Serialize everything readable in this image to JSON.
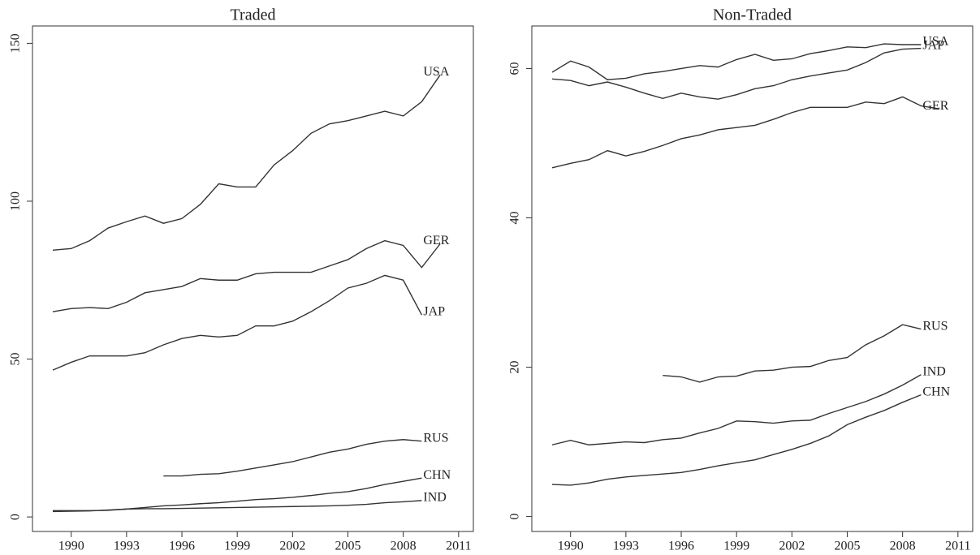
{
  "chart_data": [
    {
      "type": "line",
      "title": "Traded",
      "color": "#333333",
      "x": [
        1989,
        1990,
        1991,
        1992,
        1993,
        1994,
        1995,
        1996,
        1997,
        1998,
        1999,
        2000,
        2001,
        2002,
        2003,
        2004,
        2005,
        2006,
        2007,
        2008,
        2009,
        2010
      ],
      "xlim": [
        1987.9,
        2011.8
      ],
      "xticks": [
        1990,
        1993,
        1996,
        1999,
        2002,
        2005,
        2008,
        2011
      ],
      "ylim": [
        -4.6,
        155.5
      ],
      "yticks": [
        0,
        50,
        100,
        150
      ],
      "series": [
        {
          "name": "USA",
          "values": [
            84.5,
            85,
            87.5,
            91.5,
            93.5,
            95.3,
            93,
            94.5,
            99,
            105.5,
            104.5,
            104.5,
            111.5,
            116,
            121.5,
            124.5,
            125.5,
            127,
            128.5,
            127,
            131.5,
            140
          ]
        },
        {
          "name": "GER",
          "values": [
            65,
            66,
            66.3,
            66,
            68,
            71,
            72,
            73,
            75.5,
            75,
            75,
            77,
            77.5,
            77.5,
            77.5,
            79.5,
            81.5,
            85,
            87.5,
            86,
            79,
            86.5
          ]
        },
        {
          "name": "JAP",
          "values": [
            46.5,
            49,
            51,
            51,
            51,
            52,
            54.5,
            56.5,
            57.5,
            57,
            57.5,
            60.5,
            60.5,
            62,
            65,
            68.5,
            72.5,
            74,
            76.5,
            75,
            64,
            null
          ]
        },
        {
          "name": "RUS",
          "values": [
            null,
            null,
            null,
            null,
            null,
            null,
            13,
            13,
            13.5,
            13.7,
            14.5,
            15.5,
            16.5,
            17.5,
            19,
            20.5,
            21.5,
            23,
            24,
            24.5,
            24,
            null
          ]
        },
        {
          "name": "CHN",
          "values": [
            2,
            2,
            2,
            2.1,
            2.5,
            3,
            3.5,
            3.8,
            4.2,
            4.5,
            5,
            5.5,
            5.8,
            6.2,
            6.8,
            7.5,
            8,
            9,
            10.3,
            11.3,
            12.3,
            null
          ]
        },
        {
          "name": "IND",
          "values": [
            1.7,
            1.8,
            1.9,
            2.2,
            2.5,
            2.6,
            2.6,
            2.7,
            2.8,
            2.9,
            3,
            3.1,
            3.2,
            3.3,
            3.4,
            3.5,
            3.7,
            4,
            4.5,
            4.8,
            5.2,
            null
          ]
        }
      ]
    },
    {
      "type": "line",
      "title": "Non-Traded",
      "color": "#333333",
      "x": [
        1989,
        1990,
        1991,
        1992,
        1993,
        1994,
        1995,
        1996,
        1997,
        1998,
        1999,
        2000,
        2001,
        2002,
        2003,
        2004,
        2005,
        2006,
        2007,
        2008,
        2009,
        2010
      ],
      "xlim": [
        1987.9,
        2011.8
      ],
      "xticks": [
        1990,
        1993,
        1996,
        1999,
        2002,
        2005,
        2008,
        2011
      ],
      "ylim": [
        -2,
        65.7
      ],
      "yticks": [
        0,
        20,
        40,
        60
      ],
      "series": [
        {
          "name": "USA",
          "values": [
            59.5,
            61,
            60.2,
            58.5,
            58.7,
            59.3,
            59.6,
            60,
            60.4,
            60.2,
            61.2,
            61.9,
            61.1,
            61.3,
            62,
            62.4,
            62.9,
            62.8,
            63.3,
            63.2,
            63.2,
            null
          ]
        },
        {
          "name": "JAP",
          "values": [
            58.6,
            58.4,
            57.7,
            58.2,
            57.5,
            56.7,
            56,
            56.7,
            56.2,
            55.9,
            56.5,
            57.3,
            57.7,
            58.5,
            59,
            59.4,
            59.8,
            60.8,
            62.1,
            62.6,
            62.7,
            null
          ]
        },
        {
          "name": "GER",
          "values": [
            46.7,
            47.3,
            47.8,
            49,
            48.3,
            48.9,
            49.7,
            50.6,
            51.1,
            51.8,
            52.1,
            52.4,
            53.2,
            54.1,
            54.8,
            54.8,
            54.8,
            55.5,
            55.3,
            56.2,
            55,
            54.6
          ]
        },
        {
          "name": "RUS",
          "values": [
            null,
            null,
            null,
            null,
            null,
            null,
            18.9,
            18.7,
            18,
            18.7,
            18.8,
            19.5,
            19.6,
            20,
            20.1,
            20.9,
            21.3,
            23,
            24.2,
            25.7,
            25.1,
            null
          ]
        },
        {
          "name": "IND",
          "values": [
            9.6,
            10.2,
            9.6,
            9.8,
            10,
            9.9,
            10.3,
            10.5,
            11.2,
            11.8,
            12.8,
            12.7,
            12.5,
            12.8,
            12.9,
            13.8,
            14.6,
            15.4,
            16.4,
            17.6,
            19,
            null
          ]
        },
        {
          "name": "CHN",
          "values": [
            4.3,
            4.2,
            4.5,
            5,
            5.3,
            5.5,
            5.7,
            5.9,
            6.3,
            6.8,
            7.2,
            7.6,
            8.3,
            9,
            9.8,
            10.8,
            12.3,
            13.3,
            14.2,
            15.3,
            16.3,
            null
          ]
        }
      ]
    }
  ]
}
